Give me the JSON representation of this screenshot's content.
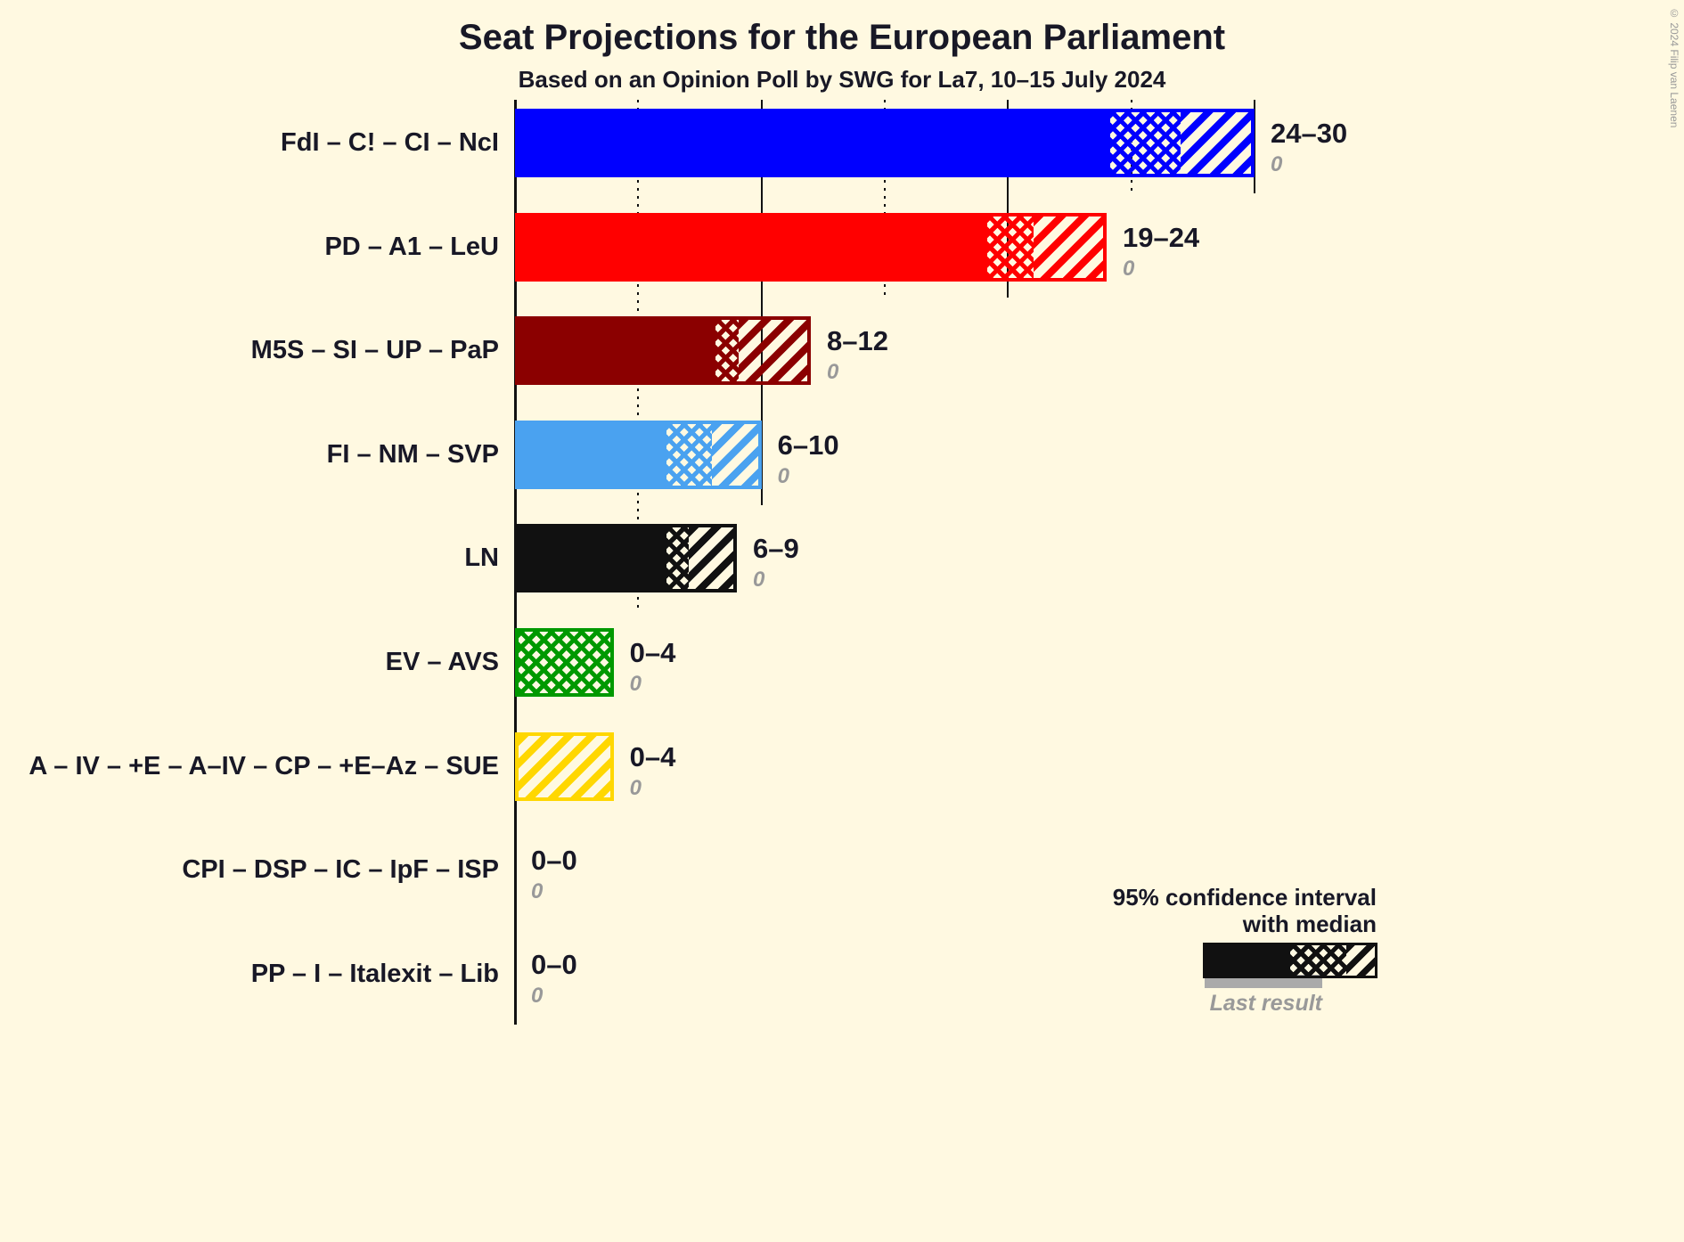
{
  "copyright": "© 2024 Filip van Laenen",
  "colors": {
    "background": "#FFF9E1",
    "text": "#181826",
    "muted": "#999999",
    "axis": "#111111",
    "last_result_bar": "#AAAAAA"
  },
  "legend": {
    "ci_line1": "95% confidence interval",
    "ci_line2": "with median",
    "last_result": "Last result"
  },
  "chart_data": {
    "type": "bar",
    "orientation": "horizontal",
    "title": "Seat Projections for the European Parliament",
    "subtitle": "Based on an Opinion Poll by SWG for La7, 10–15 July 2024",
    "x_axis": {
      "min": 0,
      "max": 30,
      "gridlines": [
        {
          "value": 5,
          "style": "dotted"
        },
        {
          "value": 10,
          "style": "solid"
        },
        {
          "value": 15,
          "style": "dotted"
        },
        {
          "value": 20,
          "style": "solid"
        },
        {
          "value": 25,
          "style": "dotted"
        },
        {
          "value": 30,
          "style": "solid"
        }
      ]
    },
    "rows": [
      {
        "label": "FdI – C! – CI – NcI",
        "color": "#0000FF",
        "low": 24,
        "median": 27,
        "high": 30,
        "range_label": "24–30",
        "last_result": 0
      },
      {
        "label": "PD – A1 – LeU",
        "color": "#FF0000",
        "low": 19,
        "median": 21,
        "high": 24,
        "range_label": "19–24",
        "last_result": 0
      },
      {
        "label": "M5S – SI – UP – PaP",
        "color": "#8B0000",
        "low": 8,
        "median": 9,
        "high": 12,
        "range_label": "8–12",
        "last_result": 0
      },
      {
        "label": "FI – NM – SVP",
        "color": "#4AA2F0",
        "low": 6,
        "median": 8,
        "high": 10,
        "range_label": "6–10",
        "last_result": 0
      },
      {
        "label": "LN",
        "color": "#111111",
        "low": 6,
        "median": 7,
        "high": 9,
        "range_label": "6–9",
        "last_result": 0
      },
      {
        "label": "EV – AVS",
        "color": "#009900",
        "low": 0,
        "median": 4,
        "high": 4,
        "range_label": "0–4",
        "last_result": 0
      },
      {
        "label": "A – IV – +E – A–IV – CP – +E–Az – SUE",
        "color": "#FFD700",
        "low": 0,
        "median": 0,
        "high": 4,
        "range_label": "0–4",
        "last_result": 0
      },
      {
        "label": "CPI – DSP – IC – IpF – ISP",
        "color": "#111111",
        "low": 0,
        "median": 0,
        "high": 0,
        "range_label": "0–0",
        "last_result": 0
      },
      {
        "label": "PP – I – Italexit – Lib",
        "color": "#111111",
        "low": 0,
        "median": 0,
        "high": 0,
        "range_label": "0–0",
        "last_result": 0
      }
    ]
  }
}
